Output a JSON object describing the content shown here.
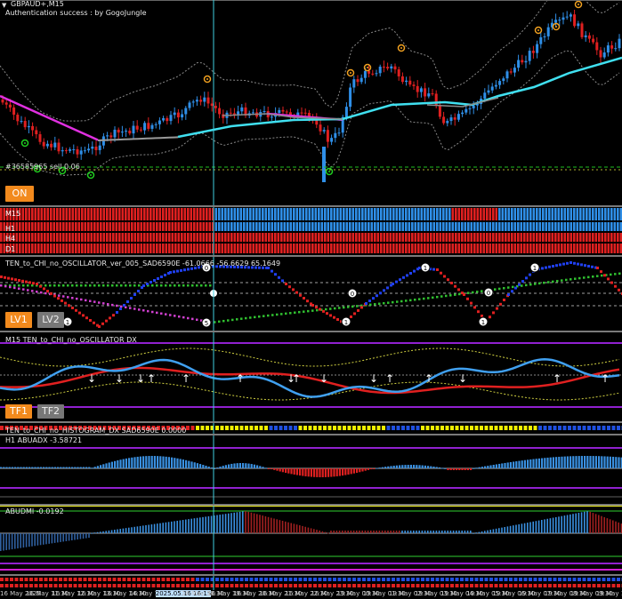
{
  "chart": {
    "symbol": "GBPAUD+,M15",
    "auth_text": "Authentication success : by GogoJungle",
    "sell_label": "#36585965 sell 0.06",
    "on_button": "ON"
  },
  "mtf_strip": {
    "rows": [
      "M15",
      "H1",
      "H4",
      "D1"
    ]
  },
  "oscillator": {
    "title": "TEN_to_CHI_no_OSCILLATOR_ver_005_SAD6590E -61.0666 -56.6629 65.1649",
    "lv1": "LV1",
    "lv2": "LV2",
    "markers": [
      "1",
      "0",
      "5",
      "1",
      "0",
      "1",
      "0",
      "1",
      "1"
    ]
  },
  "osc_dx": {
    "title": "M15 TEN_to_CHI_no_OSCILLATOR DX",
    "tf1": "TF1",
    "tf2": "TF2"
  },
  "histogram": {
    "title": "TEN_to_CHI_no_HISTOGRAM_DX SAD6590E 0.0000"
  },
  "abuadx": {
    "title": "H1 ABUADX -3.58721"
  },
  "abudmi": {
    "title": "ABUDMI -0.0192"
  },
  "time_axis": {
    "labels": [
      "16 May 2025",
      "16 May 11:30",
      "16 May 12:30",
      "16 May 13:30",
      "16 May 14:30",
      "16 May 15:30",
      "2025.05.16 16:15",
      "16 May 18:30",
      "16 May 19:30",
      "16 May 20:30",
      "16 May 21:30",
      "16 May 22:30",
      "16 May 23:30",
      "19 May 00:30",
      "19 May 01:30",
      "19 May 02:30",
      "19 May 03:30",
      "19 May 04:30",
      "19 May 05:30",
      "19 May 06:30",
      "19 May 07:30",
      "19 May 08:30",
      "19 May 09:30",
      "19 May 10:30"
    ]
  },
  "colors": {
    "background": "#000000",
    "bull": "#2f8fe8",
    "bear": "#e02020",
    "cyan_ma": "#40e0f0",
    "magenta_ma": "#e030e0",
    "orange_button": "#f28a1d",
    "gray_button": "#777777",
    "separator": "#7a7a7a",
    "yellow": "#f0f000",
    "green": "#20c020",
    "purple": "#9020d0"
  }
}
